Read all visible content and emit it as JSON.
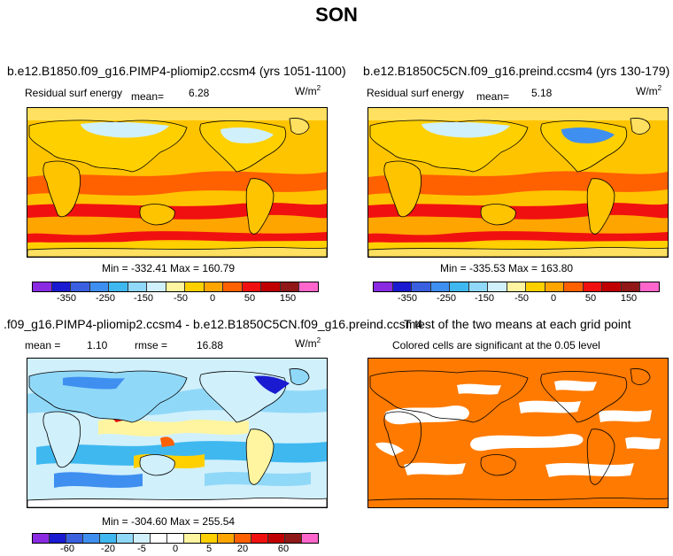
{
  "figure": {
    "title": "SON"
  },
  "panels": [
    {
      "id": "top-left",
      "title": "b.e12.B1850.f09_g16.PIMP4-pliomip2.ccsm4 (yrs 1051-1100)",
      "field": "Residual surf energy",
      "mean_label": "mean=",
      "mean_value": "6.28",
      "units": "W/m",
      "units_exp": "2",
      "minmax": "Min = -332.41 Max = 160.79",
      "colorbar_ticks": [
        "-350",
        "-250",
        "-150",
        "-50",
        "0",
        "50",
        "150"
      ]
    },
    {
      "id": "top-right",
      "title": "b.e12.B1850C5CN.f09_g16.preind.ccsm4 (yrs 130-179)",
      "field": "Residual surf energy",
      "mean_label": "mean=",
      "mean_value": "5.18",
      "units": "W/m",
      "units_exp": "2",
      "minmax": "Min = -335.53 Max = 163.80",
      "colorbar_ticks": [
        "-350",
        "-250",
        "-150",
        "-50",
        "0",
        "50",
        "150"
      ]
    },
    {
      "id": "bottom-left",
      "title": ".f09_g16.PIMP4-pliomip2.ccsm4 - b.e12.B1850C5CN.f09_g16.preind.ccsm4",
      "mean_label": "mean =",
      "mean_value": "1.10",
      "rmse_label": "rmse =",
      "rmse_value": "16.88",
      "units": "W/m",
      "units_exp": "2",
      "minmax": "Min = -304.60 Max = 255.54",
      "colorbar_ticks": [
        "-60",
        "-20",
        "-5",
        "0",
        "5",
        "20",
        "60"
      ]
    },
    {
      "id": "bottom-right",
      "title": "T test of the two means at each grid point",
      "subtitle": "Colored cells are significant at the 0.05 level"
    }
  ],
  "colors": {
    "field_scale": [
      "#8a2be2",
      "#1a1ad0",
      "#3a60e0",
      "#3f8ff0",
      "#3fb8f0",
      "#90d8f8",
      "#d0f0fc",
      "#fff5a0",
      "#ffd000",
      "#ffa500",
      "#ff6000",
      "#f01010",
      "#c00000",
      "#901818",
      "#ff66cc"
    ],
    "diff_scale": [
      "#8a2be2",
      "#1a1ad0",
      "#3a60e0",
      "#3f8ff0",
      "#3fb8f0",
      "#90d8f8",
      "#d0f0fc",
      "#ffffff",
      "#ffffff",
      "#fff5a0",
      "#ffd000",
      "#ffa500",
      "#ff6000",
      "#f01010",
      "#c00000",
      "#901818",
      "#ff66cc"
    ],
    "significance": "#ff7a00"
  }
}
